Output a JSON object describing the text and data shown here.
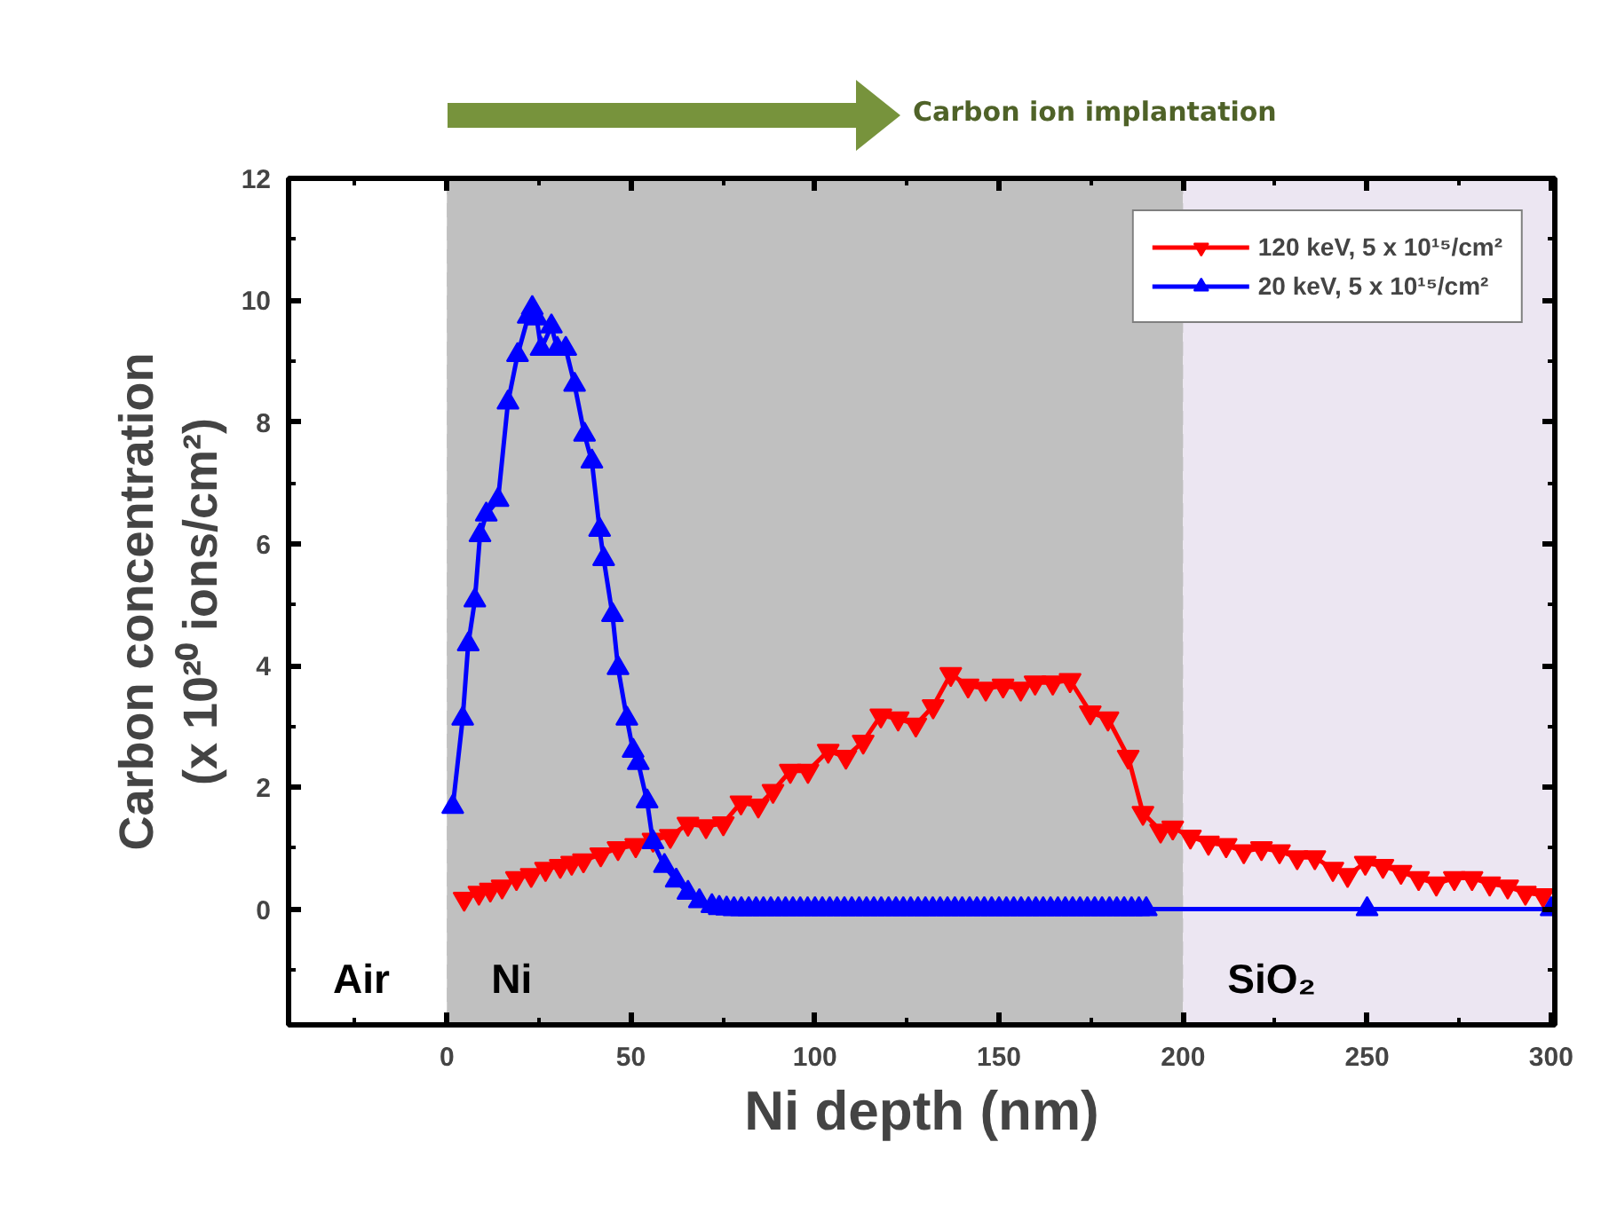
{
  "chart_data": {
    "type": "line",
    "xlabel": "Ni depth (nm)",
    "ylabel": "Carbon concentration\n(x 10²⁰ ions/cm²)",
    "annotations": [
      "Carbon ion implantation"
    ],
    "xlim": [
      -43,
      301
    ],
    "ylim": [
      -1.9,
      12
    ],
    "xticks": [
      {
        "value": -25,
        "label": null
      },
      0,
      {
        "value": 25,
        "label": null
      },
      50,
      {
        "value": 75,
        "label": null
      },
      100,
      {
        "value": 125,
        "label": null
      },
      150,
      {
        "value": 175,
        "label": null
      },
      200,
      {
        "value": 225,
        "label": null
      },
      250,
      {
        "value": 275,
        "label": null
      },
      300
    ],
    "yticks": [
      {
        "value": -1,
        "label": null
      },
      0,
      {
        "value": 1,
        "label": null
      },
      2,
      {
        "value": 3,
        "label": null
      },
      4,
      {
        "value": 5,
        "label": null
      },
      6,
      {
        "value": 7,
        "label": null
      },
      8,
      {
        "value": 9,
        "label": null
      },
      10,
      {
        "value": 11,
        "label": null
      },
      12
    ],
    "grid": true,
    "legend": "top right",
    "bands": [
      {
        "axis": "x",
        "from": -43,
        "to": 0,
        "label": "Air",
        "color": "#ffffff"
      },
      {
        "axis": "x",
        "from": 0,
        "to": 200,
        "label": "Ni",
        "color": "#c0c0c0"
      },
      {
        "axis": "x",
        "from": 200,
        "to": 301,
        "label": "SiO₂",
        "color": "#ece6f2"
      }
    ],
    "series": [
      {
        "name": "120 keV, 5 x 10¹⁵/cm²",
        "color": "#ff0000",
        "marker": "triangle_down",
        "x": [
          4.7,
          8.7,
          11.8,
          15,
          18.9,
          22.9,
          26.8,
          30.8,
          33.9,
          37.1,
          41.8,
          46.5,
          51.3,
          56,
          60.7,
          65.5,
          70.4,
          75.1,
          79.9,
          84.6,
          88.6,
          93.3,
          98.1,
          103.6,
          108.4,
          113.1,
          117.9,
          122.6,
          127.4,
          132.1,
          136.9,
          141.6,
          146.4,
          151.1,
          155.9,
          159.8,
          164.6,
          169.3,
          174.8,
          179.6,
          185.1,
          189.1,
          193.9,
          197.2,
          202,
          206.9,
          211.7,
          216.5,
          221.3,
          226.2,
          231,
          235.8,
          240.7,
          244.7,
          249.5,
          254.3,
          259.2,
          264,
          268.8,
          273.7,
          278.5,
          283.3,
          288.2,
          293,
          297.8
        ],
        "values": [
          0.17,
          0.27,
          0.32,
          0.37,
          0.51,
          0.56,
          0.66,
          0.71,
          0.76,
          0.8,
          0.9,
          1.0,
          1.05,
          1.14,
          1.2,
          1.4,
          1.36,
          1.41,
          1.75,
          1.7,
          1.94,
          2.27,
          2.27,
          2.6,
          2.5,
          2.75,
          3.18,
          3.13,
          3.03,
          3.33,
          3.86,
          3.67,
          3.62,
          3.67,
          3.62,
          3.72,
          3.72,
          3.76,
          3.23,
          3.13,
          2.5,
          1.58,
          1.29,
          1.34,
          1.19,
          1.09,
          1.05,
          0.95,
          1.0,
          0.95,
          0.85,
          0.85,
          0.66,
          0.56,
          0.76,
          0.71,
          0.61,
          0.51,
          0.42,
          0.51,
          0.51,
          0.42,
          0.37,
          0.27,
          0.23
        ]
      },
      {
        "name": "20 keV, 5 x 10¹⁵/cm²",
        "color": "#0000ff",
        "marker": "triangle",
        "x": [
          1.6,
          4.3,
          5.8,
          7.6,
          9.0,
          10.7,
          13.9,
          16.6,
          19.2,
          22.1,
          23.2,
          24.4,
          25.6,
          28.4,
          30,
          32.3,
          34.7,
          37.4,
          39.4,
          41.5,
          42.6,
          45,
          46.5,
          48.9,
          50.6,
          52,
          54.4,
          56,
          59.1,
          62.3,
          65.5,
          68.6,
          72,
          74,
          76,
          78,
          80,
          82,
          84,
          86,
          88,
          90,
          92,
          94,
          96,
          98,
          100,
          102,
          104,
          106,
          108,
          110,
          112,
          114,
          116,
          118,
          120,
          122,
          124,
          126,
          128,
          130,
          132,
          134,
          136,
          138,
          140,
          142,
          144,
          146,
          148,
          150,
          152,
          154,
          156,
          158,
          160,
          162,
          164,
          166,
          168,
          170,
          172,
          174,
          176,
          178,
          180,
          182,
          184,
          186,
          188,
          190,
          250,
          300
        ],
        "values": [
          1.68,
          3.13,
          4.35,
          5.07,
          6.14,
          6.48,
          6.72,
          8.32,
          9.1,
          9.73,
          9.87,
          9.7,
          9.2,
          9.57,
          9.2,
          9.2,
          8.61,
          7.79,
          7.35,
          6.23,
          5.75,
          4.83,
          3.96,
          3.13,
          2.6,
          2.4,
          1.77,
          1.1,
          0.71,
          0.47,
          0.27,
          0.13,
          0.05,
          0.02,
          0.01,
          0,
          0,
          0,
          0,
          0,
          0,
          0,
          0,
          0,
          0,
          0,
          0,
          0,
          0,
          0,
          0,
          0,
          0,
          0,
          0,
          0,
          0,
          0,
          0,
          0,
          0,
          0,
          0,
          0,
          0,
          0,
          0,
          0,
          0,
          0,
          0,
          0,
          0,
          0,
          0,
          0,
          0,
          0,
          0,
          0,
          0,
          0,
          0,
          0,
          0,
          0,
          0,
          0,
          0,
          0,
          0,
          0,
          0,
          0
        ]
      }
    ]
  }
}
